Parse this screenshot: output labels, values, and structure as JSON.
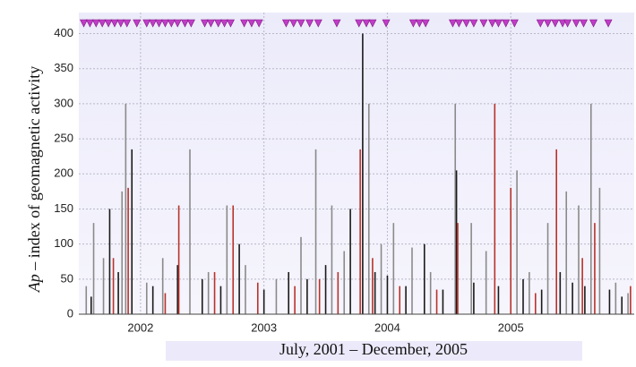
{
  "chart_data": {
    "type": "spike",
    "ylabel_italic": "Ap",
    "ylabel": "– index of geomagnetic activity",
    "xlabel": "July, 2001 – December, 2005",
    "xlim": [
      2001.5,
      2006
    ],
    "xticks": [
      2002,
      2003,
      2004,
      2005
    ],
    "ylim": [
      0,
      430
    ],
    "yticks": [
      0,
      50,
      100,
      150,
      200,
      250,
      300,
      350,
      400
    ],
    "grid": true,
    "series": [
      {
        "color": "#8a8a8a",
        "x": [
          2001.56,
          2001.62,
          2001.7,
          2001.85,
          2001.88,
          2002.05,
          2002.18,
          2002.4,
          2002.55,
          2002.7,
          2002.85,
          2003.1,
          2003.3,
          2003.42,
          2003.55,
          2003.65,
          2003.85,
          2003.95,
          2004.05,
          2004.2,
          2004.35,
          2004.55,
          2004.68,
          2004.8,
          2005.05,
          2005.15,
          2005.3,
          2005.45,
          2005.55,
          2005.65,
          2005.72,
          2005.85,
          2005.95
        ],
        "values": [
          40,
          130,
          80,
          175,
          300,
          45,
          80,
          235,
          60,
          155,
          70,
          50,
          110,
          235,
          155,
          90,
          300,
          100,
          130,
          95,
          60,
          300,
          130,
          90,
          205,
          60,
          130,
          175,
          155,
          300,
          180,
          45,
          30
        ]
      },
      {
        "color": "#1a1a1a",
        "x": [
          2001.6,
          2001.75,
          2001.82,
          2001.93,
          2002.1,
          2002.3,
          2002.5,
          2002.65,
          2002.8,
          2003.0,
          2003.2,
          2003.35,
          2003.5,
          2003.7,
          2003.8,
          2003.9,
          2004.0,
          2004.15,
          2004.3,
          2004.45,
          2004.56,
          2004.7,
          2004.9,
          2005.1,
          2005.25,
          2005.4,
          2005.5,
          2005.6,
          2005.8,
          2005.9
        ],
        "values": [
          25,
          150,
          60,
          235,
          40,
          70,
          50,
          40,
          100,
          35,
          60,
          50,
          70,
          150,
          400,
          60,
          55,
          40,
          100,
          35,
          205,
          45,
          40,
          50,
          35,
          60,
          45,
          40,
          35,
          25
        ]
      },
      {
        "color": "#b8322a",
        "x": [
          2001.78,
          2001.9,
          2002.2,
          2002.31,
          2002.6,
          2002.75,
          2002.95,
          2003.25,
          2003.45,
          2003.6,
          2003.78,
          2003.88,
          2004.1,
          2004.4,
          2004.57,
          2004.87,
          2005.0,
          2005.2,
          2005.37,
          2005.58,
          2005.68,
          2005.97
        ],
        "values": [
          80,
          180,
          30,
          155,
          60,
          155,
          45,
          40,
          50,
          60,
          235,
          80,
          40,
          35,
          130,
          300,
          180,
          30,
          235,
          80,
          130,
          40
        ]
      }
    ],
    "event_markers": {
      "color": "#c23cc8",
      "x": [
        2001.54,
        2001.59,
        2001.64,
        2001.69,
        2001.74,
        2001.79,
        2001.84,
        2001.89,
        2001.97,
        2002.05,
        2002.1,
        2002.15,
        2002.2,
        2002.25,
        2002.3,
        2002.36,
        2002.41,
        2002.52,
        2002.57,
        2002.63,
        2002.68,
        2002.73,
        2002.84,
        2002.9,
        2002.96,
        2003.18,
        2003.24,
        2003.3,
        2003.37,
        2003.44,
        2003.59,
        2003.77,
        2003.83,
        2003.88,
        2003.99,
        2004.21,
        2004.26,
        2004.31,
        2004.53,
        2004.58,
        2004.64,
        2004.7,
        2004.78,
        2004.85,
        2004.9,
        2004.96,
        2005.03,
        2005.24,
        2005.3,
        2005.36,
        2005.42,
        2005.46,
        2005.53,
        2005.59,
        2005.67,
        2005.79
      ]
    }
  }
}
